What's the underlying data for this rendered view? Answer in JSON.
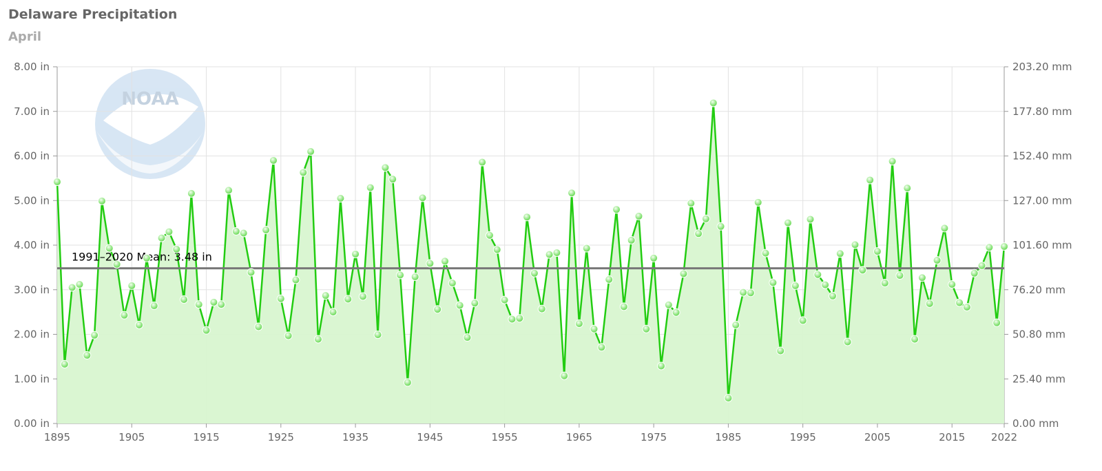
{
  "title": "Delaware Precipitation",
  "subtitle": "April",
  "logo_text": "NOAA",
  "colors": {
    "line": "#22cc11",
    "area": "#d8f5d0",
    "mean": "#777777",
    "grid": "#e2e2e2"
  },
  "chart_data": {
    "type": "line",
    "title": "Delaware Precipitation",
    "subtitle": "April",
    "xlim": [
      1895,
      2022
    ],
    "ylim": [
      0,
      8
    ],
    "ylim_right": [
      0,
      203.2
    ],
    "grid": true,
    "x_ticks": [
      "1895",
      "1905",
      "1915",
      "1925",
      "1935",
      "1945",
      "1955",
      "1965",
      "1975",
      "1985",
      "1995",
      "2005",
      "2015",
      "2022"
    ],
    "y_ticks_left": [
      "0.00 in",
      "1.00 in",
      "2.00 in",
      "3.00 in",
      "4.00 in",
      "5.00 in",
      "6.00 in",
      "7.00 in",
      "8.00 in"
    ],
    "y_ticks_right": [
      "0.00 mm",
      "25.40 mm",
      "50.80 mm",
      "76.20 mm",
      "101.60 mm",
      "127.00 mm",
      "152.40 mm",
      "177.80 mm",
      "203.20 mm"
    ],
    "mean": {
      "label": "1991–2020 Mean: 3.48 in",
      "value": 3.48
    },
    "series": [
      {
        "x": [
          1895,
          1896,
          1897,
          1898,
          1899,
          1900,
          1901,
          1902,
          1903,
          1904,
          1905,
          1906,
          1907,
          1908,
          1909,
          1910,
          1911,
          1912,
          1913,
          1914,
          1915,
          1916,
          1917,
          1918,
          1919,
          1920,
          1921,
          1922,
          1923,
          1924,
          1925,
          1926,
          1927,
          1928,
          1929,
          1930,
          1931,
          1932,
          1933,
          1934,
          1935,
          1936,
          1937,
          1938,
          1939,
          1940,
          1941,
          1942,
          1943,
          1944,
          1945,
          1946,
          1947,
          1948,
          1949,
          1950,
          1951,
          1952,
          1953,
          1954,
          1955,
          1956,
          1957,
          1958,
          1959,
          1960,
          1961,
          1962,
          1963,
          1964,
          1965,
          1966,
          1967,
          1968,
          1969,
          1970,
          1971,
          1972,
          1973,
          1974,
          1975,
          1976,
          1977,
          1978,
          1979,
          1980,
          1981,
          1982,
          1983,
          1984,
          1985,
          1986,
          1987,
          1988,
          1989,
          1990,
          1991,
          1992,
          1993,
          1994,
          1995,
          1996,
          1997,
          1998,
          1999,
          2000,
          2001,
          2002,
          2003,
          2004,
          2005,
          2006,
          2007,
          2008,
          2009,
          2010,
          2011,
          2012,
          2013,
          2014,
          2015,
          2016,
          2017,
          2018,
          2019,
          2020,
          2021,
          2022
        ],
        "values": [
          5.42,
          1.33,
          3.05,
          3.12,
          1.53,
          1.98,
          4.99,
          3.93,
          3.57,
          2.43,
          3.09,
          2.21,
          3.71,
          2.64,
          4.16,
          4.3,
          3.91,
          2.78,
          5.16,
          2.67,
          2.09,
          2.72,
          2.67,
          5.23,
          4.31,
          4.27,
          3.39,
          2.17,
          4.34,
          5.9,
          2.8,
          1.97,
          3.22,
          5.63,
          6.1,
          1.89,
          2.87,
          2.5,
          5.05,
          2.79,
          3.8,
          2.85,
          5.29,
          1.99,
          5.74,
          5.48,
          3.33,
          0.92,
          3.29,
          5.06,
          3.59,
          2.56,
          3.64,
          3.15,
          2.65,
          1.93,
          2.7,
          5.86,
          4.22,
          3.9,
          2.77,
          2.34,
          2.36,
          4.63,
          3.37,
          2.57,
          3.79,
          3.83,
          1.07,
          5.17,
          2.24,
          3.93,
          2.12,
          1.71,
          3.23,
          4.8,
          2.62,
          4.11,
          4.65,
          2.12,
          3.71,
          1.29,
          2.66,
          2.49,
          3.36,
          4.94,
          4.26,
          4.59,
          7.19,
          4.42,
          0.57,
          2.21,
          2.94,
          2.93,
          4.96,
          3.82,
          3.16,
          1.63,
          4.5,
          3.09,
          2.31,
          4.58,
          3.34,
          3.11,
          2.86,
          3.81,
          1.83,
          4.01,
          3.44,
          5.46,
          3.86,
          3.15,
          5.88,
          3.32,
          5.28,
          1.89,
          3.27,
          2.69,
          3.66,
          4.38,
          3.12,
          2.71,
          2.61,
          3.37,
          3.54,
          3.95,
          2.26,
          3.97
        ]
      }
    ]
  }
}
